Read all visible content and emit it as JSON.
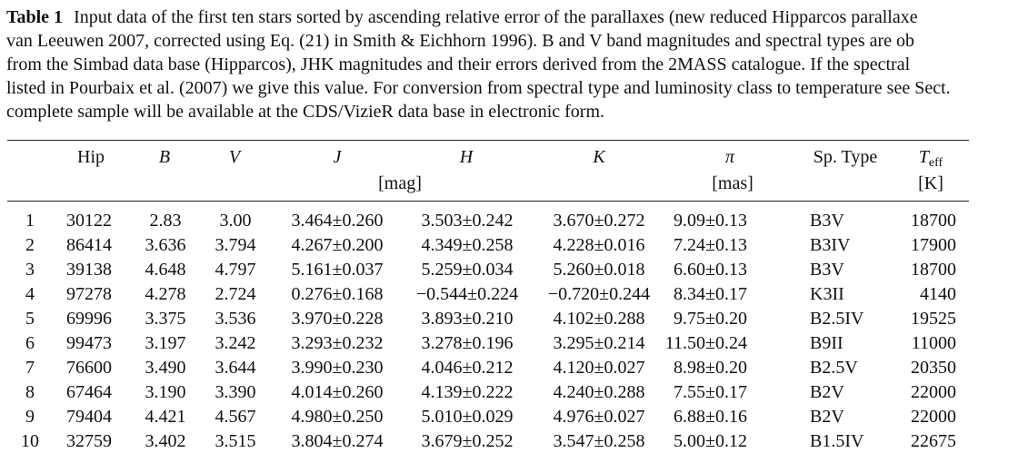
{
  "caption": {
    "label": "Table 1",
    "lines": [
      "Input data of the first ten stars sorted by ascending relative error of the parallaxes (new reduced Hipparcos parallaxe",
      "van Leeuwen 2007, corrected using Eq. (21) in Smith & Eichhorn 1996). B and V band magnitudes and spectral types are ob",
      "from the Simbad data base (Hipparcos), JHK magnitudes and their errors derived from the 2MASS catalogue. If the spectral",
      "listed in Pourbaix et al. (2007) we give this value. For conversion from spectral type and luminosity class to temperature see Sect.",
      "complete sample will be available at the CDS/VizieR data base in electronic form."
    ]
  },
  "table": {
    "headers": {
      "hip": "Hip",
      "b": "B",
      "v": "V",
      "j": "J",
      "h": "H",
      "k": "K",
      "pi": "π",
      "sptype": "Sp. Type",
      "teff_main": "T",
      "teff_sub": "eff"
    },
    "units": {
      "mag": "[mag]",
      "mas": "[mas]",
      "kelvin": "[K]"
    },
    "rows": [
      {
        "n": "1",
        "hip": "30122",
        "b": "2.83",
        "v": "3.00",
        "j": "3.464±0.260",
        "h": "3.503±0.242",
        "k": "3.670±0.272",
        "pi": "9.09±0.13",
        "sp": "B3V",
        "teff": "18700"
      },
      {
        "n": "2",
        "hip": "86414",
        "b": "3.636",
        "v": "3.794",
        "j": "4.267±0.200",
        "h": "4.349±0.258",
        "k": "4.228±0.016",
        "pi": "7.24±0.13",
        "sp": "B3IV",
        "teff": "17900"
      },
      {
        "n": "3",
        "hip": "39138",
        "b": "4.648",
        "v": "4.797",
        "j": "5.161±0.037",
        "h": "5.259±0.034",
        "k": "5.260±0.018",
        "pi": "6.60±0.13",
        "sp": "B3V",
        "teff": "18700"
      },
      {
        "n": "4",
        "hip": "97278",
        "b": "4.278",
        "v": "2.724",
        "j": "0.276±0.168",
        "h": "−0.544±0.224",
        "k": "−0.720±0.244",
        "pi": "8.34±0.17",
        "sp": "K3II",
        "teff": "4140"
      },
      {
        "n": "5",
        "hip": "69996",
        "b": "3.375",
        "v": "3.536",
        "j": "3.970±0.228",
        "h": "3.893±0.210",
        "k": "4.102±0.288",
        "pi": "9.75±0.20",
        "sp": "B2.5IV",
        "teff": "19525"
      },
      {
        "n": "6",
        "hip": "99473",
        "b": "3.197",
        "v": "3.242",
        "j": "3.293±0.232",
        "h": "3.278±0.196",
        "k": "3.295±0.214",
        "pi": "11.50±0.24",
        "sp": "B9II",
        "teff": "11000"
      },
      {
        "n": "7",
        "hip": "76600",
        "b": "3.490",
        "v": "3.644",
        "j": "3.990±0.230",
        "h": "4.046±0.212",
        "k": "4.120±0.027",
        "pi": "8.98±0.20",
        "sp": "B2.5V",
        "teff": "20350"
      },
      {
        "n": "8",
        "hip": "67464",
        "b": "3.190",
        "v": "3.390",
        "j": "4.014±0.260",
        "h": "4.139±0.222",
        "k": "4.240±0.288",
        "pi": "7.55±0.17",
        "sp": "B2V",
        "teff": "22000"
      },
      {
        "n": "9",
        "hip": "79404",
        "b": "4.421",
        "v": "4.567",
        "j": "4.980±0.250",
        "h": "5.010±0.029",
        "k": "4.976±0.027",
        "pi": "6.88±0.16",
        "sp": "B2V",
        "teff": "22000"
      },
      {
        "n": "10",
        "hip": "32759",
        "b": "3.402",
        "v": "3.515",
        "j": "3.804±0.274",
        "h": "3.679±0.252",
        "k": "3.547±0.258",
        "pi": "5.00±0.12",
        "sp": "B1.5IV",
        "teff": "22675"
      }
    ]
  }
}
